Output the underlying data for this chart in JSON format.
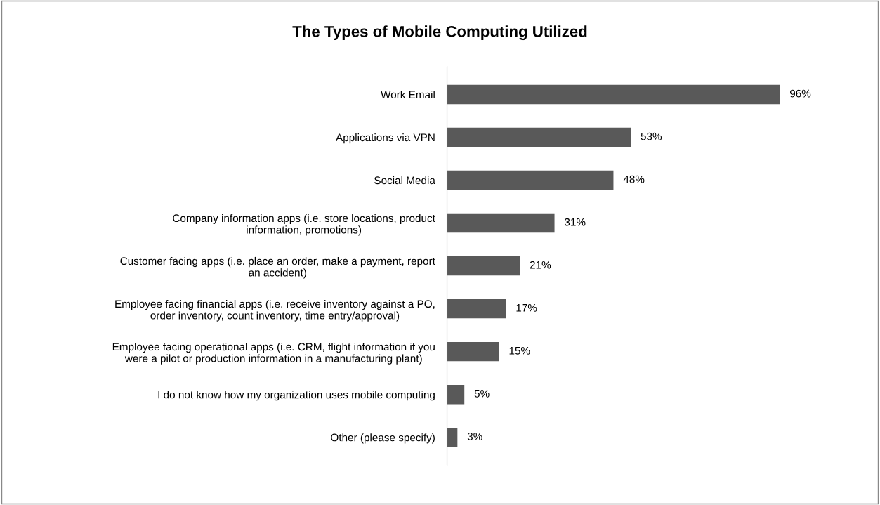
{
  "chart_data": {
    "type": "bar",
    "orientation": "horizontal",
    "title": "The Types of Mobile Computing Utilized",
    "categories": [
      "Work Email",
      "Applications via VPN",
      "Social Media",
      "Company information apps (i.e. store locations, product\ninformation, promotions)",
      "Customer facing apps (i.e. place an order, make a payment, report\nan accident)",
      "Employee facing financial apps (i.e. receive inventory against a PO,\norder inventory, count inventory, time entry/approval)",
      "Employee facing operational apps (i.e. CRM, flight information if you\nwere a pilot or production information in a manufacturing plant)",
      "I do not know how my organization uses mobile computing",
      "Other (please specify)"
    ],
    "values": [
      96,
      53,
      48,
      31,
      21,
      17,
      15,
      5,
      3
    ],
    "value_labels": [
      "96%",
      "53%",
      "48%",
      "31%",
      "21%",
      "17%",
      "15%",
      "5%",
      "3%"
    ],
    "color": "#595959",
    "grid": false,
    "legend": false
  }
}
